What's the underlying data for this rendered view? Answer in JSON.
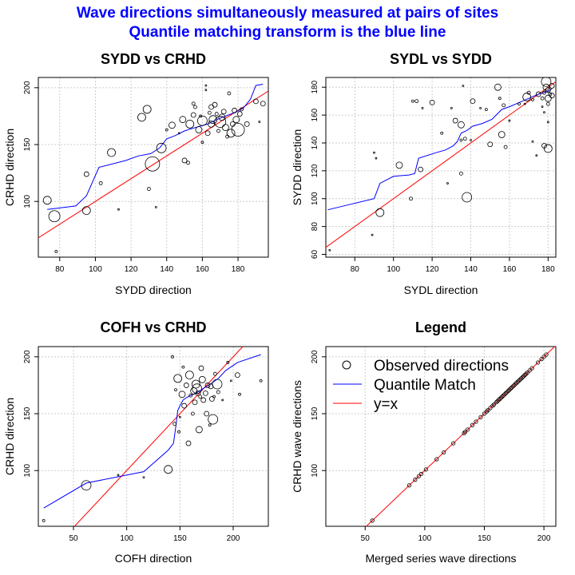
{
  "figure": {
    "title_line1": "Wave directions simultaneously measured at pairs of sites",
    "title_line2": "Quantile matching transform is the blue line",
    "colors": {
      "title": "#0000ff",
      "quantile": "#0000ff",
      "identity": "#ff0000",
      "points": "#000000",
      "grid": "#cccccc"
    }
  },
  "chart_data": [
    {
      "type": "scatter",
      "title": "SYDD vs CRHD",
      "xlabel": "SYDD direction",
      "ylabel": "CRHD direction",
      "xlim": [
        68,
        197
      ],
      "ylim": [
        51,
        209
      ],
      "xticks": [
        80,
        100,
        120,
        140,
        160,
        180
      ],
      "yticks": [
        100,
        150,
        200
      ],
      "grid": true,
      "points": [
        {
          "x": 73,
          "y": 101,
          "r": 5
        },
        {
          "x": 77,
          "y": 87,
          "r": 7
        },
        {
          "x": 78,
          "y": 56,
          "r": 1.5
        },
        {
          "x": 95,
          "y": 92,
          "r": 5
        },
        {
          "x": 95,
          "y": 124,
          "r": 3
        },
        {
          "x": 103,
          "y": 116,
          "r": 2
        },
        {
          "x": 109,
          "y": 143,
          "r": 5
        },
        {
          "x": 113,
          "y": 93,
          "r": 1
        },
        {
          "x": 126,
          "y": 174,
          "r": 5
        },
        {
          "x": 129,
          "y": 181,
          "r": 5
        },
        {
          "x": 130,
          "y": 111,
          "r": 2
        },
        {
          "x": 132,
          "y": 133,
          "r": 9
        },
        {
          "x": 134,
          "y": 95,
          "r": 1
        },
        {
          "x": 137,
          "y": 147,
          "r": 6
        },
        {
          "x": 140,
          "y": 163,
          "r": 1.5
        },
        {
          "x": 143,
          "y": 167,
          "r": 4
        },
        {
          "x": 147,
          "y": 160,
          "r": 1
        },
        {
          "x": 149,
          "y": 172,
          "r": 4
        },
        {
          "x": 150,
          "y": 136,
          "r": 3
        },
        {
          "x": 152,
          "y": 134,
          "r": 2
        },
        {
          "x": 153,
          "y": 168,
          "r": 5
        },
        {
          "x": 155,
          "y": 176,
          "r": 3
        },
        {
          "x": 155,
          "y": 186,
          "r": 2
        },
        {
          "x": 156,
          "y": 183,
          "r": 2
        },
        {
          "x": 158,
          "y": 163,
          "r": 4
        },
        {
          "x": 159,
          "y": 175,
          "r": 1.5
        },
        {
          "x": 160,
          "y": 152,
          "r": 1.5
        },
        {
          "x": 160,
          "y": 171,
          "r": 6
        },
        {
          "x": 162,
          "y": 202,
          "r": 1
        },
        {
          "x": 162,
          "y": 198,
          "r": 1
        },
        {
          "x": 163,
          "y": 160,
          "r": 3
        },
        {
          "x": 164,
          "y": 178,
          "r": 2
        },
        {
          "x": 165,
          "y": 183,
          "r": 3
        },
        {
          "x": 165,
          "y": 168,
          "r": 4
        },
        {
          "x": 166,
          "y": 172,
          "r": 5
        },
        {
          "x": 167,
          "y": 185,
          "r": 3
        },
        {
          "x": 168,
          "y": 177,
          "r": 2
        },
        {
          "x": 169,
          "y": 162,
          "r": 2
        },
        {
          "x": 170,
          "y": 170,
          "r": 7
        },
        {
          "x": 171,
          "y": 174,
          "r": 4
        },
        {
          "x": 172,
          "y": 179,
          "r": 3
        },
        {
          "x": 173,
          "y": 165,
          "r": 4
        },
        {
          "x": 174,
          "y": 157,
          "r": 2
        },
        {
          "x": 175,
          "y": 195,
          "r": 2
        },
        {
          "x": 176,
          "y": 160,
          "r": 5
        },
        {
          "x": 177,
          "y": 168,
          "r": 3
        },
        {
          "x": 178,
          "y": 180,
          "r": 3
        },
        {
          "x": 179,
          "y": 172,
          "r": 4
        },
        {
          "x": 180,
          "y": 163,
          "r": 8
        },
        {
          "x": 181,
          "y": 177,
          "r": 3
        },
        {
          "x": 182,
          "y": 181,
          "r": 2
        },
        {
          "x": 185,
          "y": 168,
          "r": 3
        },
        {
          "x": 190,
          "y": 188,
          "r": 3
        },
        {
          "x": 192,
          "y": 170,
          "r": 1
        },
        {
          "x": 194,
          "y": 186,
          "r": 3
        }
      ],
      "quantile": [
        [
          73,
          93
        ],
        [
          89,
          96
        ],
        [
          95,
          105
        ],
        [
          102,
          130
        ],
        [
          117,
          136
        ],
        [
          124,
          140
        ],
        [
          131,
          142
        ],
        [
          136,
          147
        ],
        [
          140,
          155
        ],
        [
          145,
          158
        ],
        [
          150,
          162
        ],
        [
          156,
          165
        ],
        [
          163,
          168
        ],
        [
          168,
          172
        ],
        [
          173,
          175
        ],
        [
          178,
          178
        ],
        [
          183,
          182
        ],
        [
          187,
          190
        ],
        [
          190,
          202
        ],
        [
          194,
          203
        ]
      ],
      "identity": [
        [
          68,
          68
        ],
        [
          197,
          197
        ]
      ]
    },
    {
      "type": "scatter",
      "title": "SYDL vs SYDD",
      "xlabel": "SYDL direction",
      "ylabel": "SYDD direction",
      "xlim": [
        65,
        184
      ],
      "ylim": [
        58,
        187
      ],
      "xticks": [
        80,
        100,
        120,
        140,
        160,
        180
      ],
      "yticks": [
        60,
        80,
        100,
        120,
        140,
        160,
        180
      ],
      "grid": true,
      "points": [
        {
          "x": 67,
          "y": 63,
          "r": 1
        },
        {
          "x": 89,
          "y": 74,
          "r": 1
        },
        {
          "x": 90,
          "y": 133,
          "r": 1
        },
        {
          "x": 91,
          "y": 129,
          "r": 1
        },
        {
          "x": 93,
          "y": 90,
          "r": 5
        },
        {
          "x": 103,
          "y": 124,
          "r": 4
        },
        {
          "x": 109,
          "y": 100,
          "r": 2
        },
        {
          "x": 110,
          "y": 170,
          "r": 1.5
        },
        {
          "x": 112,
          "y": 170,
          "r": 2
        },
        {
          "x": 114,
          "y": 121,
          "r": 3
        },
        {
          "x": 115,
          "y": 165,
          "r": 1
        },
        {
          "x": 120,
          "y": 169,
          "r": 3
        },
        {
          "x": 125,
          "y": 147,
          "r": 1.5
        },
        {
          "x": 128,
          "y": 111,
          "r": 1
        },
        {
          "x": 130,
          "y": 165,
          "r": 1
        },
        {
          "x": 132,
          "y": 156,
          "r": 3
        },
        {
          "x": 135,
          "y": 153,
          "r": 4
        },
        {
          "x": 135,
          "y": 142,
          "r": 1.5
        },
        {
          "x": 135,
          "y": 118,
          "r": 2
        },
        {
          "x": 136,
          "y": 181,
          "r": 1
        },
        {
          "x": 137,
          "y": 143,
          "r": 2
        },
        {
          "x": 138,
          "y": 101,
          "r": 6
        },
        {
          "x": 140,
          "y": 142,
          "r": 1
        },
        {
          "x": 141,
          "y": 170,
          "r": 3
        },
        {
          "x": 145,
          "y": 165,
          "r": 1
        },
        {
          "x": 148,
          "y": 164,
          "r": 1.5
        },
        {
          "x": 150,
          "y": 139,
          "r": 3
        },
        {
          "x": 154,
          "y": 180,
          "r": 4
        },
        {
          "x": 155,
          "y": 172,
          "r": 1.5
        },
        {
          "x": 156,
          "y": 146,
          "r": 4
        },
        {
          "x": 157,
          "y": 167,
          "r": 2
        },
        {
          "x": 158,
          "y": 137,
          "r": 2
        },
        {
          "x": 160,
          "y": 156,
          "r": 1
        },
        {
          "x": 165,
          "y": 168,
          "r": 1.5
        },
        {
          "x": 168,
          "y": 168,
          "r": 1
        },
        {
          "x": 169,
          "y": 173,
          "r": 5
        },
        {
          "x": 170,
          "y": 176,
          "r": 2
        },
        {
          "x": 172,
          "y": 171,
          "r": 1.5
        },
        {
          "x": 172,
          "y": 141,
          "r": 1
        },
        {
          "x": 174,
          "y": 131,
          "r": 1
        },
        {
          "x": 175,
          "y": 175,
          "r": 3
        },
        {
          "x": 177,
          "y": 172,
          "r": 2
        },
        {
          "x": 177,
          "y": 166,
          "r": 1
        },
        {
          "x": 178,
          "y": 176,
          "r": 2
        },
        {
          "x": 178,
          "y": 162,
          "r": 1
        },
        {
          "x": 178,
          "y": 138,
          "r": 3
        },
        {
          "x": 179,
          "y": 184,
          "r": 6
        },
        {
          "x": 179,
          "y": 180,
          "r": 4
        },
        {
          "x": 180,
          "y": 178,
          "r": 3
        },
        {
          "x": 180,
          "y": 172,
          "r": 4
        },
        {
          "x": 180,
          "y": 168,
          "r": 2
        },
        {
          "x": 180,
          "y": 155,
          "r": 1
        },
        {
          "x": 180,
          "y": 136,
          "r": 5
        },
        {
          "x": 181,
          "y": 175,
          "r": 2
        },
        {
          "x": 182,
          "y": 181,
          "r": 3
        },
        {
          "x": 182,
          "y": 174,
          "r": 3
        }
      ],
      "quantile": [
        [
          66,
          92
        ],
        [
          78,
          96
        ],
        [
          90,
          100
        ],
        [
          93,
          111
        ],
        [
          100,
          116
        ],
        [
          108,
          117
        ],
        [
          111,
          118
        ],
        [
          113,
          129
        ],
        [
          122,
          133
        ],
        [
          127,
          135
        ],
        [
          131,
          138
        ],
        [
          133,
          141
        ],
        [
          135,
          147
        ],
        [
          138,
          149
        ],
        [
          141,
          152
        ],
        [
          146,
          154
        ],
        [
          151,
          157
        ],
        [
          156,
          164
        ],
        [
          160,
          166
        ],
        [
          165,
          169
        ],
        [
          170,
          172
        ],
        [
          175,
          175
        ],
        [
          180,
          177
        ],
        [
          182,
          179
        ]
      ],
      "identity": [
        [
          60,
          60
        ],
        [
          184,
          184
        ]
      ]
    },
    {
      "type": "scatter",
      "title": "COFH vs CRHD",
      "xlabel": "COFH direction",
      "ylabel": "CRHD direction",
      "xlim": [
        17,
        233
      ],
      "ylim": [
        51,
        209
      ],
      "xticks": [
        50,
        100,
        150,
        200
      ],
      "yticks": [
        100,
        150,
        200
      ],
      "grid": true,
      "points": [
        {
          "x": 22,
          "y": 56,
          "r": 1.5
        },
        {
          "x": 62,
          "y": 87,
          "r": 6
        },
        {
          "x": 92,
          "y": 96,
          "r": 1
        },
        {
          "x": 116,
          "y": 94,
          "r": 1
        },
        {
          "x": 139,
          "y": 101,
          "r": 5
        },
        {
          "x": 143,
          "y": 200,
          "r": 1.5
        },
        {
          "x": 145,
          "y": 141,
          "r": 2
        },
        {
          "x": 146,
          "y": 171,
          "r": 1.5
        },
        {
          "x": 148,
          "y": 181,
          "r": 5
        },
        {
          "x": 149,
          "y": 134,
          "r": 1.5
        },
        {
          "x": 150,
          "y": 147,
          "r": 1
        },
        {
          "x": 152,
          "y": 167,
          "r": 4
        },
        {
          "x": 153,
          "y": 191,
          "r": 1.5
        },
        {
          "x": 154,
          "y": 157,
          "r": 3
        },
        {
          "x": 156,
          "y": 175,
          "r": 3
        },
        {
          "x": 158,
          "y": 124,
          "r": 3
        },
        {
          "x": 159,
          "y": 184,
          "r": 5
        },
        {
          "x": 160,
          "y": 166,
          "r": 2
        },
        {
          "x": 162,
          "y": 150,
          "r": 2
        },
        {
          "x": 163,
          "y": 170,
          "r": 4
        },
        {
          "x": 164,
          "y": 160,
          "r": 3
        },
        {
          "x": 165,
          "y": 176,
          "r": 5
        },
        {
          "x": 166,
          "y": 172,
          "r": 6
        },
        {
          "x": 167,
          "y": 168,
          "r": 3
        },
        {
          "x": 168,
          "y": 136,
          "r": 4
        },
        {
          "x": 169,
          "y": 165,
          "r": 2
        },
        {
          "x": 170,
          "y": 190,
          "r": 3
        },
        {
          "x": 171,
          "y": 180,
          "r": 4
        },
        {
          "x": 172,
          "y": 162,
          "r": 3
        },
        {
          "x": 174,
          "y": 168,
          "r": 3
        },
        {
          "x": 175,
          "y": 150,
          "r": 3
        },
        {
          "x": 176,
          "y": 175,
          "r": 3
        },
        {
          "x": 178,
          "y": 140,
          "r": 1.5
        },
        {
          "x": 179,
          "y": 174,
          "r": 3
        },
        {
          "x": 180,
          "y": 163,
          "r": 3
        },
        {
          "x": 181,
          "y": 145,
          "r": 6
        },
        {
          "x": 182,
          "y": 165,
          "r": 1.5
        },
        {
          "x": 183,
          "y": 185,
          "r": 2
        },
        {
          "x": 185,
          "y": 176,
          "r": 6
        },
        {
          "x": 186,
          "y": 169,
          "r": 2
        },
        {
          "x": 190,
          "y": 162,
          "r": 1
        },
        {
          "x": 195,
          "y": 195,
          "r": 1.5
        },
        {
          "x": 198,
          "y": 179,
          "r": 1
        },
        {
          "x": 204,
          "y": 184,
          "r": 3
        },
        {
          "x": 206,
          "y": 167,
          "r": 1.5
        },
        {
          "x": 226,
          "y": 179,
          "r": 1.5
        }
      ],
      "quantile": [
        [
          22,
          67
        ],
        [
          62,
          89
        ],
        [
          116,
          99
        ],
        [
          139,
          118
        ],
        [
          144,
          124
        ],
        [
          146,
          138
        ],
        [
          148,
          153
        ],
        [
          150,
          157
        ],
        [
          153,
          162
        ],
        [
          156,
          164
        ],
        [
          160,
          166
        ],
        [
          165,
          168
        ],
        [
          170,
          171
        ],
        [
          175,
          174
        ],
        [
          180,
          177
        ],
        [
          186,
          181
        ],
        [
          193,
          188
        ],
        [
          204,
          195
        ],
        [
          226,
          202
        ]
      ],
      "identity": [
        [
          51,
          51
        ],
        [
          209,
          209
        ]
      ]
    },
    {
      "type": "scatter",
      "title": "Legend",
      "xlabel": "Merged series wave directions",
      "ylabel": "CRHD wave directions",
      "xlim": [
        17,
        210
      ],
      "ylim": [
        51,
        209
      ],
      "xticks": [
        50,
        100,
        150,
        200
      ],
      "yticks": [
        100,
        150,
        200
      ],
      "grid": true,
      "legend": {
        "position": "top-left",
        "entries": [
          "Observed directions",
          "Quantile Match",
          "y=x"
        ]
      },
      "diagonal_points": [
        56,
        87,
        92,
        95,
        97,
        101,
        110,
        116,
        124,
        133,
        134,
        136,
        140,
        143,
        147,
        150,
        152,
        153,
        155,
        157,
        158,
        160,
        161,
        162,
        163,
        164,
        165,
        166,
        167,
        168,
        169,
        170,
        171,
        172,
        173,
        174,
        175,
        176,
        177,
        178,
        179,
        180,
        181,
        182,
        183,
        184,
        185,
        186,
        188,
        190,
        195,
        198,
        200,
        202
      ],
      "identity": [
        [
          17,
          17
        ],
        [
          210,
          210
        ]
      ]
    }
  ]
}
